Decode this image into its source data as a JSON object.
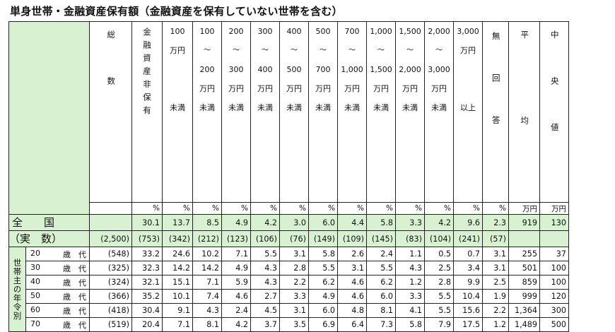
{
  "title": "単身世帯・金融資産保有額（金融資産を保有していない世帯を含む）",
  "header": {
    "total": "総数",
    "none": "金融資産非保有",
    "ranges": [
      [
        "100",
        "万円",
        "未満"
      ],
      [
        "100",
        "〜",
        "200",
        "万円",
        "未満"
      ],
      [
        "200",
        "〜",
        "300",
        "万円",
        "未満"
      ],
      [
        "300",
        "〜",
        "400",
        "万円",
        "未満"
      ],
      [
        "400",
        "〜",
        "500",
        "万円",
        "未満"
      ],
      [
        "500",
        "〜",
        "700",
        "万円",
        "未満"
      ],
      [
        "700",
        "〜",
        "1,000",
        "万円",
        "未満"
      ],
      [
        "1,000",
        "〜",
        "1,500",
        "万円",
        "未満"
      ],
      [
        "1,500",
        "〜",
        "2,000",
        "万円",
        "未満"
      ],
      [
        "2,000",
        "〜",
        "3,000",
        "万円",
        "未満"
      ],
      [
        "3,000",
        "万円",
        "以上"
      ]
    ],
    "no_answer": "無回答",
    "mean": "平均",
    "median": "中央値"
  },
  "units": [
    "",
    "%",
    "%",
    "%",
    "%",
    "%",
    "%",
    "%",
    "%",
    "%",
    "%",
    "%",
    "%",
    "%",
    "万円",
    "万円"
  ],
  "national": {
    "label1": "全　　国",
    "label2": "（実　数）",
    "pct": [
      "",
      "30.1",
      "13.7",
      "8.5",
      "4.9",
      "4.2",
      "3.0",
      "6.0",
      "4.4",
      "5.8",
      "3.3",
      "4.2",
      "9.6",
      "2.3",
      "919",
      "130"
    ],
    "counts": [
      "(2,500)",
      "(753)",
      "(342)",
      "(212)",
      "(123)",
      "(106)",
      "(76)",
      "(149)",
      "(109)",
      "(145)",
      "(83)",
      "(104)",
      "(241)",
      "(57)",
      "",
      ""
    ]
  },
  "group_label": "世帯主の年令別",
  "rows": [
    {
      "age": "20",
      "unit": "歳　代",
      "vals": [
        "(548)",
        "33.2",
        "24.6",
        "10.2",
        "7.1",
        "5.5",
        "3.1",
        "5.8",
        "2.6",
        "2.4",
        "1.1",
        "0.5",
        "0.7",
        "3.1",
        "255",
        "37"
      ]
    },
    {
      "age": "30",
      "unit": "歳　代",
      "vals": [
        "(325)",
        "32.3",
        "14.2",
        "14.2",
        "4.9",
        "4.3",
        "2.8",
        "5.5",
        "3.1",
        "5.5",
        "4.3",
        "2.5",
        "3.4",
        "3.1",
        "501",
        "100"
      ]
    },
    {
      "age": "40",
      "unit": "歳　代",
      "vals": [
        "(324)",
        "32.1",
        "15.1",
        "7.1",
        "5.9",
        "4.3",
        "2.2",
        "6.2",
        "4.6",
        "6.2",
        "1.2",
        "2.8",
        "9.9",
        "2.5",
        "859",
        "100"
      ]
    },
    {
      "age": "50",
      "unit": "歳　代",
      "vals": [
        "(366)",
        "35.2",
        "10.1",
        "7.4",
        "4.6",
        "2.7",
        "3.3",
        "4.9",
        "4.6",
        "6.0",
        "3.3",
        "5.5",
        "10.4",
        "1.9",
        "999",
        "120"
      ]
    },
    {
      "age": "60",
      "unit": "歳　代",
      "vals": [
        "(418)",
        "30.4",
        "9.1",
        "4.3",
        "2.4",
        "4.5",
        "3.1",
        "6.0",
        "4.8",
        "8.1",
        "4.1",
        "5.5",
        "15.6",
        "2.2",
        "1,364",
        "300"
      ]
    },
    {
      "age": "70",
      "unit": "歳　代",
      "vals": [
        "(519)",
        "20.4",
        "7.1",
        "8.1",
        "4.2",
        "3.7",
        "3.5",
        "6.9",
        "6.4",
        "7.3",
        "5.8",
        "7.9",
        "17.5",
        "1.2",
        "1,489",
        "500"
      ]
    }
  ]
}
